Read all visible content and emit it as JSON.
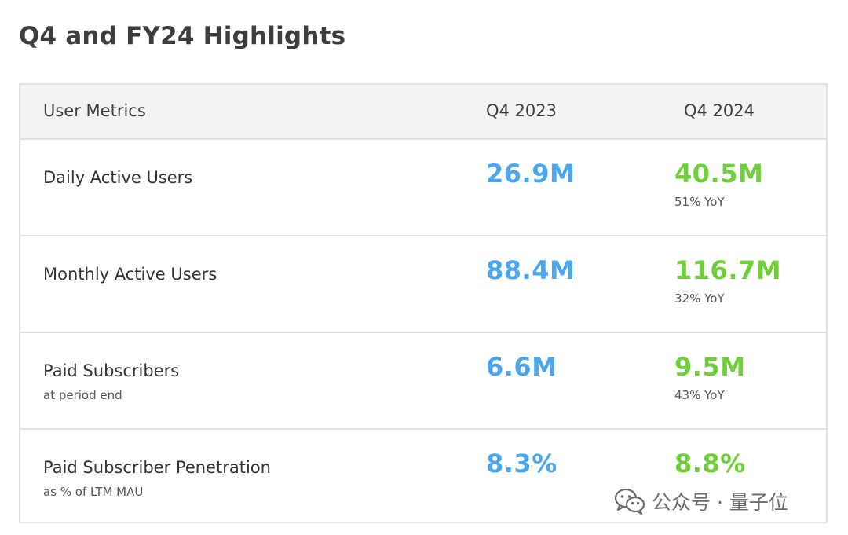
{
  "page": {
    "title": "Q4 and FY24 Highlights"
  },
  "table": {
    "headers": {
      "metric": "User Metrics",
      "col_2023": "Q4 2023",
      "col_2024": "Q4 2024"
    },
    "rows": [
      {
        "name": "Daily Active Users",
        "sub": "",
        "q4_2023": "26.9M",
        "q4_2024": "40.5M",
        "yoy": "51% YoY"
      },
      {
        "name": "Monthly Active Users",
        "sub": "",
        "q4_2023": "88.4M",
        "q4_2024": "116.7M",
        "yoy": "32% YoY"
      },
      {
        "name": "Paid Subscribers",
        "sub": "at period end",
        "q4_2023": "6.6M",
        "q4_2024": "9.5M",
        "yoy": "43% YoY"
      },
      {
        "name": "Paid Subscriber Penetration",
        "sub": "as % of LTM MAU",
        "q4_2023": "8.3%",
        "q4_2024": "8.8%",
        "yoy": ""
      }
    ]
  },
  "watermark": {
    "text": "公众号 · 量子位",
    "icon": "wechat-icon"
  },
  "colors": {
    "q4_2023_value": "#4aa7ee",
    "q4_2024_value": "#6fcf3a",
    "header_bg": "#f3f3f3",
    "border": "#e2e2e2"
  }
}
